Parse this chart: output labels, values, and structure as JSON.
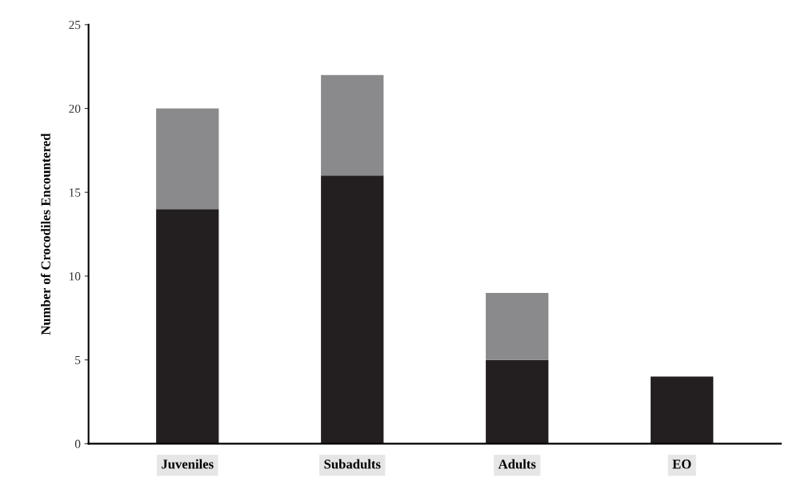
{
  "chart_data": {
    "type": "bar",
    "stacked": true,
    "ylabel": "Number of Crocodiles Encountered",
    "categories": [
      "Juveniles",
      "Subadults",
      "Adults",
      "EO"
    ],
    "series": [
      {
        "color": "#231f20",
        "values": [
          14,
          16,
          5,
          4
        ]
      },
      {
        "color": "#8a8a8c",
        "values": [
          6,
          6,
          4,
          0
        ]
      }
    ],
    "ylim": [
      0,
      25
    ],
    "yticks": [
      0,
      5,
      10,
      15,
      20,
      25
    ],
    "grid": false,
    "legend": false
  }
}
